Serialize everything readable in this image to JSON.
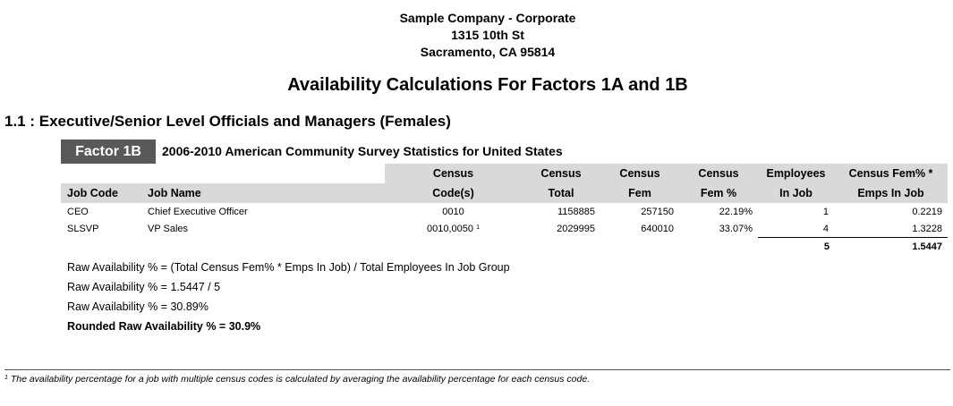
{
  "company": {
    "name": "Sample Company - Corporate",
    "address": "1315 10th St",
    "city": "Sacramento, CA 95814"
  },
  "report_title": "Availability Calculations For Factors 1A and 1B",
  "section_title": "1.1 : Executive/Senior Level Officials and Managers (Females)",
  "factor_label": "Factor 1B",
  "survey_title": "2006-2010 American Community Survey Statistics for United States",
  "table": {
    "headers": {
      "job_code": "Job Code",
      "job_name": "Job Name",
      "census_codes_1": "Census",
      "census_codes_2": "Code(s)",
      "census_total_1": "Census",
      "census_total_2": "Total",
      "census_fem_1": "Census",
      "census_fem_2": "Fem",
      "census_fem_pct_1": "Census",
      "census_fem_pct_2": "Fem %",
      "employees_1": "Employees",
      "employees_2": "In Job",
      "fem_emps_1": "Census Fem% *",
      "fem_emps_2": "Emps In Job"
    },
    "rows": [
      {
        "job_code": "CEO",
        "job_name": "Chief Executive Officer",
        "census_codes": "0010",
        "footnote_mark": "",
        "census_total": "1158885",
        "census_fem": "257150",
        "census_fem_pct": "22.19%",
        "employees": "1",
        "fem_emps": "0.2219"
      },
      {
        "job_code": "SLSVP",
        "job_name": "VP Sales",
        "census_codes": "0010,0050",
        "footnote_mark": "1",
        "census_total": "2029995",
        "census_fem": "640010",
        "census_fem_pct": "33.07%",
        "employees": "4",
        "fem_emps": "1.3228"
      }
    ],
    "totals": {
      "employees": "5",
      "fem_emps": "1.5447"
    }
  },
  "formulas": {
    "line1": "Raw Availability % = (Total Census Fem% * Emps In Job) / Total Employees In Job Group",
    "line2": "Raw Availability % = 1.5447 / 5",
    "line3": "Raw Availability % = 30.89%",
    "line4": "Rounded Raw Availability % = 30.9%"
  },
  "footnote": "The availability percentage for a job with multiple census codes is calculated by averaging the availability percentage for each census code.",
  "footnote_mark": "1"
}
